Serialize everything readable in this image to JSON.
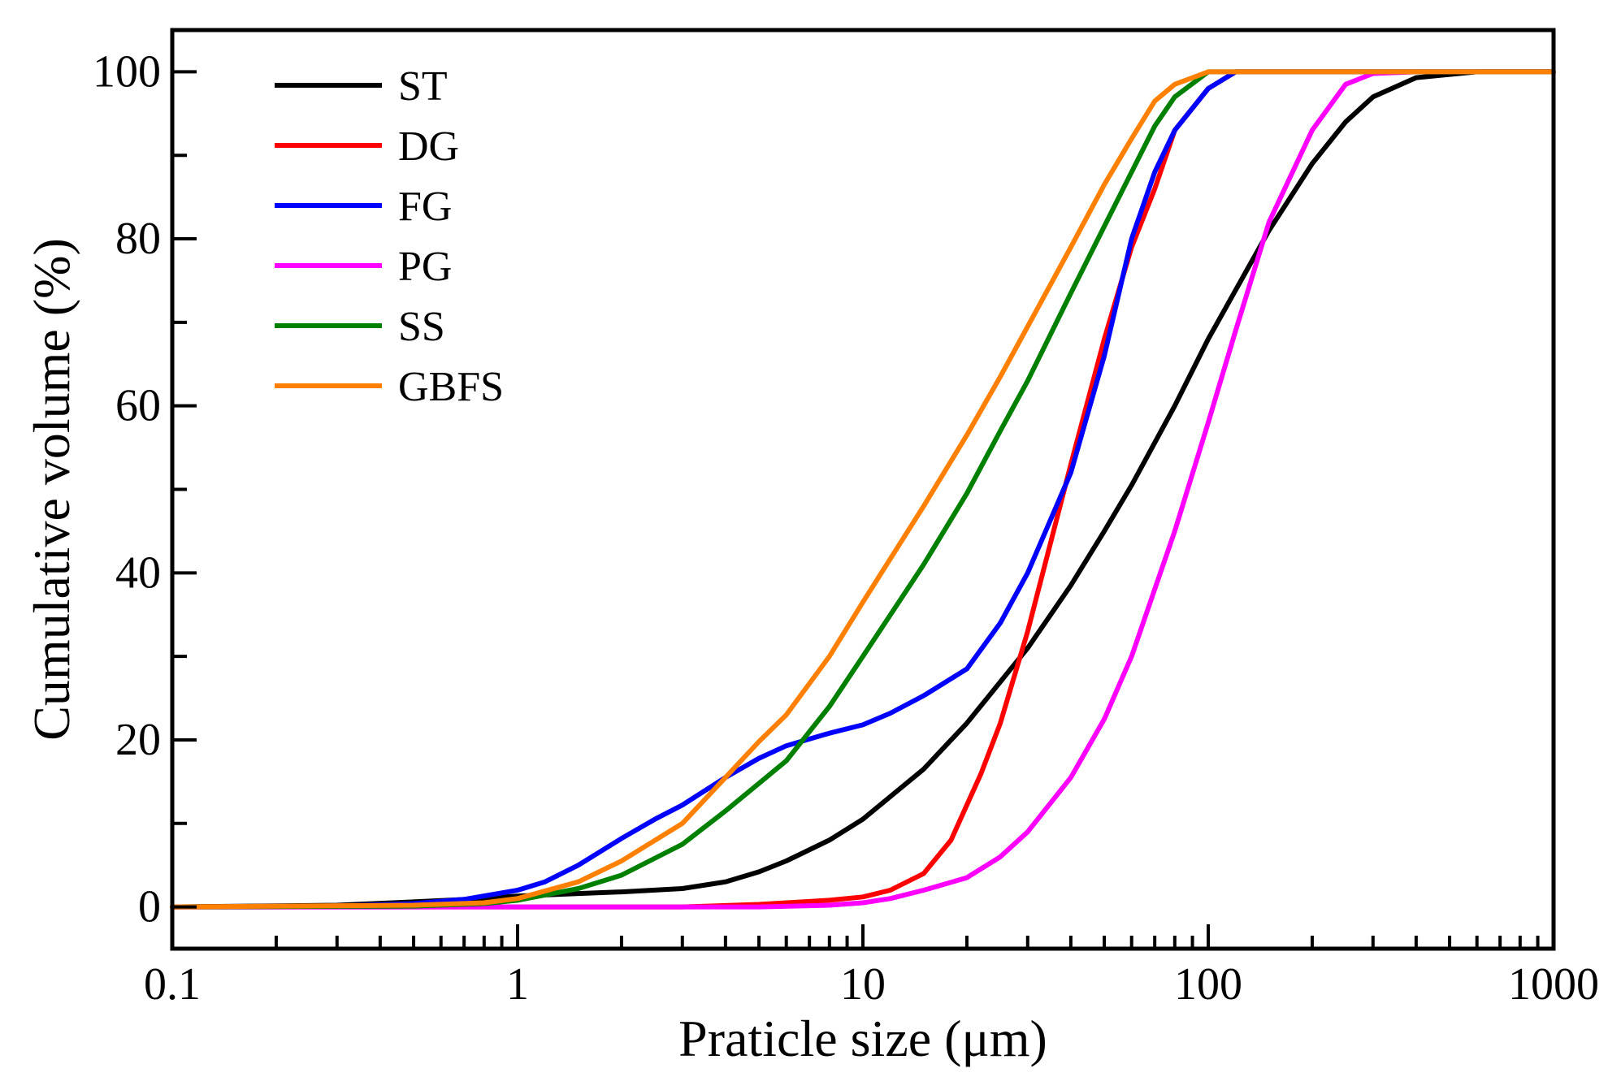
{
  "chart_data": {
    "type": "line",
    "title": "",
    "xlabel": "Praticle size (μm)",
    "ylabel": "Cumulative volume (%)",
    "x_scale": "log",
    "xlim": [
      0.1,
      1000
    ],
    "ylim": [
      -5,
      105
    ],
    "x_ticks": [
      0.1,
      1,
      10,
      100,
      1000
    ],
    "x_tick_labels": [
      "0.1",
      "1",
      "10",
      "100",
      "1000"
    ],
    "y_ticks": [
      0,
      20,
      40,
      60,
      80,
      100
    ],
    "y_tick_labels": [
      "0",
      "20",
      "40",
      "60",
      "80",
      "100"
    ],
    "grid": false,
    "legend_position": "top-left",
    "series": [
      {
        "name": "ST",
        "color": "#000000",
        "points": [
          [
            0.1,
            0
          ],
          [
            0.3,
            0.2
          ],
          [
            0.5,
            0.6
          ],
          [
            0.8,
            1.0
          ],
          [
            1,
            1.3
          ],
          [
            1.5,
            1.6
          ],
          [
            2,
            1.8
          ],
          [
            3,
            2.2
          ],
          [
            4,
            3.0
          ],
          [
            5,
            4.2
          ],
          [
            6,
            5.5
          ],
          [
            8,
            8.0
          ],
          [
            10,
            10.5
          ],
          [
            15,
            16.5
          ],
          [
            20,
            22
          ],
          [
            30,
            31
          ],
          [
            40,
            38.5
          ],
          [
            50,
            45
          ],
          [
            60,
            50.5
          ],
          [
            80,
            60
          ],
          [
            100,
            68
          ],
          [
            150,
            81
          ],
          [
            200,
            89
          ],
          [
            250,
            94
          ],
          [
            300,
            97
          ],
          [
            400,
            99.3
          ],
          [
            600,
            100
          ],
          [
            1000,
            100
          ]
        ]
      },
      {
        "name": "DG",
        "color": "#ff0000",
        "points": [
          [
            0.1,
            0
          ],
          [
            3,
            0
          ],
          [
            5,
            0.3
          ],
          [
            8,
            0.8
          ],
          [
            10,
            1.2
          ],
          [
            12,
            2.0
          ],
          [
            15,
            4.0
          ],
          [
            18,
            8.0
          ],
          [
            22,
            16
          ],
          [
            25,
            22
          ],
          [
            30,
            33
          ],
          [
            40,
            53
          ],
          [
            50,
            68
          ],
          [
            60,
            79
          ],
          [
            70,
            86
          ],
          [
            80,
            93
          ],
          [
            100,
            98
          ],
          [
            120,
            100
          ],
          [
            1000,
            100
          ]
        ]
      },
      {
        "name": "FG",
        "color": "#0000ff",
        "points": [
          [
            0.1,
            0
          ],
          [
            0.3,
            0.1
          ],
          [
            0.5,
            0.4
          ],
          [
            0.7,
            0.9
          ],
          [
            1,
            2.0
          ],
          [
            1.2,
            3.0
          ],
          [
            1.5,
            5.0
          ],
          [
            2,
            8.2
          ],
          [
            2.5,
            10.5
          ],
          [
            3,
            12.2
          ],
          [
            4,
            15.5
          ],
          [
            5,
            17.8
          ],
          [
            6,
            19.3
          ],
          [
            8,
            20.8
          ],
          [
            10,
            21.8
          ],
          [
            12,
            23.2
          ],
          [
            15,
            25.3
          ],
          [
            20,
            28.5
          ],
          [
            25,
            34
          ],
          [
            30,
            40
          ],
          [
            40,
            52
          ],
          [
            50,
            66
          ],
          [
            60,
            80
          ],
          [
            70,
            88
          ],
          [
            80,
            93
          ],
          [
            100,
            98
          ],
          [
            120,
            100
          ],
          [
            1000,
            100
          ]
        ]
      },
      {
        "name": "PG",
        "color": "#ff00ff",
        "points": [
          [
            0.1,
            0
          ],
          [
            5,
            0
          ],
          [
            8,
            0.2
          ],
          [
            10,
            0.5
          ],
          [
            12,
            1.0
          ],
          [
            15,
            2.0
          ],
          [
            20,
            3.5
          ],
          [
            25,
            6.0
          ],
          [
            30,
            9.0
          ],
          [
            40,
            15.5
          ],
          [
            50,
            22.5
          ],
          [
            60,
            30
          ],
          [
            80,
            45
          ],
          [
            100,
            58
          ],
          [
            120,
            69
          ],
          [
            150,
            82
          ],
          [
            200,
            93
          ],
          [
            250,
            98.5
          ],
          [
            300,
            99.8
          ],
          [
            400,
            100
          ],
          [
            1000,
            100
          ]
        ]
      },
      {
        "name": "SS",
        "color": "#008000",
        "points": [
          [
            0.1,
            0
          ],
          [
            0.5,
            0.1
          ],
          [
            0.8,
            0.4
          ],
          [
            1,
            0.8
          ],
          [
            1.5,
            2.2
          ],
          [
            2,
            3.8
          ],
          [
            3,
            7.5
          ],
          [
            4,
            11.5
          ],
          [
            5,
            14.8
          ],
          [
            6,
            17.5
          ],
          [
            8,
            24
          ],
          [
            10,
            30
          ],
          [
            15,
            41
          ],
          [
            20,
            49.5
          ],
          [
            25,
            57
          ],
          [
            30,
            63
          ],
          [
            40,
            73.5
          ],
          [
            50,
            81.5
          ],
          [
            60,
            88
          ],
          [
            70,
            93.5
          ],
          [
            80,
            97
          ],
          [
            100,
            100
          ],
          [
            1000,
            100
          ]
        ]
      },
      {
        "name": "GBFS",
        "color": "#ff8000",
        "points": [
          [
            0.1,
            0
          ],
          [
            0.5,
            0.2
          ],
          [
            0.8,
            0.5
          ],
          [
            1,
            1.0
          ],
          [
            1.5,
            3.0
          ],
          [
            2,
            5.5
          ],
          [
            3,
            10
          ],
          [
            4,
            15.5
          ],
          [
            5,
            19.8
          ],
          [
            6,
            23
          ],
          [
            8,
            30
          ],
          [
            10,
            36.5
          ],
          [
            15,
            48
          ],
          [
            20,
            56.5
          ],
          [
            25,
            63.5
          ],
          [
            30,
            69.5
          ],
          [
            40,
            79
          ],
          [
            50,
            86.5
          ],
          [
            60,
            92
          ],
          [
            70,
            96.5
          ],
          [
            80,
            98.5
          ],
          [
            100,
            100
          ],
          [
            1000,
            100
          ]
        ]
      }
    ]
  }
}
